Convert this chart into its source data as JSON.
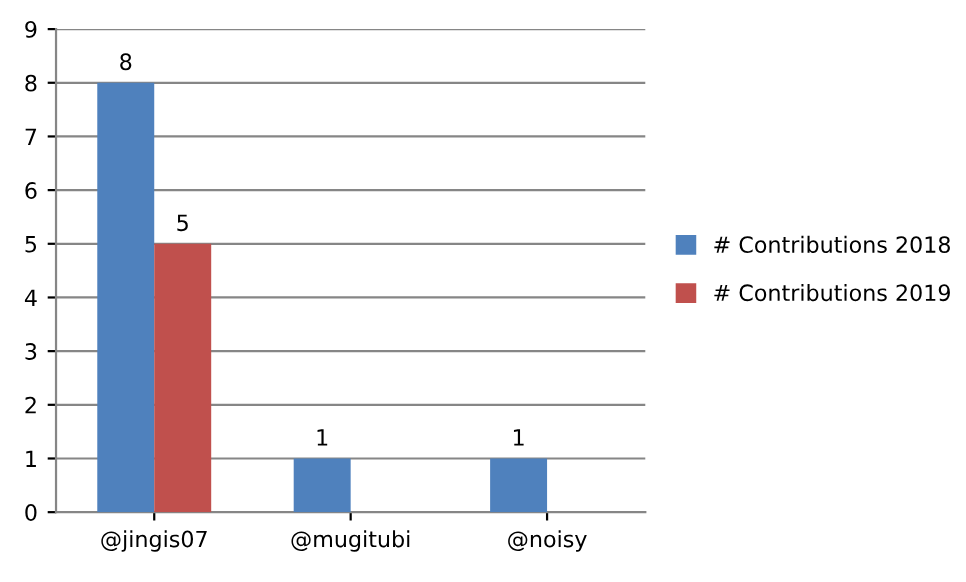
{
  "chart_data": {
    "type": "bar",
    "categories": [
      "@jingis07",
      "@mugitubi",
      "@noisy"
    ],
    "series": [
      {
        "name": "# Contributions 2018",
        "color": "#4f81bd",
        "values": [
          8,
          1,
          1
        ]
      },
      {
        "name": "# Contributions 2019",
        "color": "#c0504d",
        "values": [
          5,
          null,
          null
        ]
      }
    ],
    "ylim": [
      0,
      9
    ],
    "yticks": [
      0,
      1,
      2,
      3,
      4,
      5,
      6,
      7,
      8,
      9
    ],
    "grid": "y",
    "legend": "right",
    "data_labels": true
  }
}
